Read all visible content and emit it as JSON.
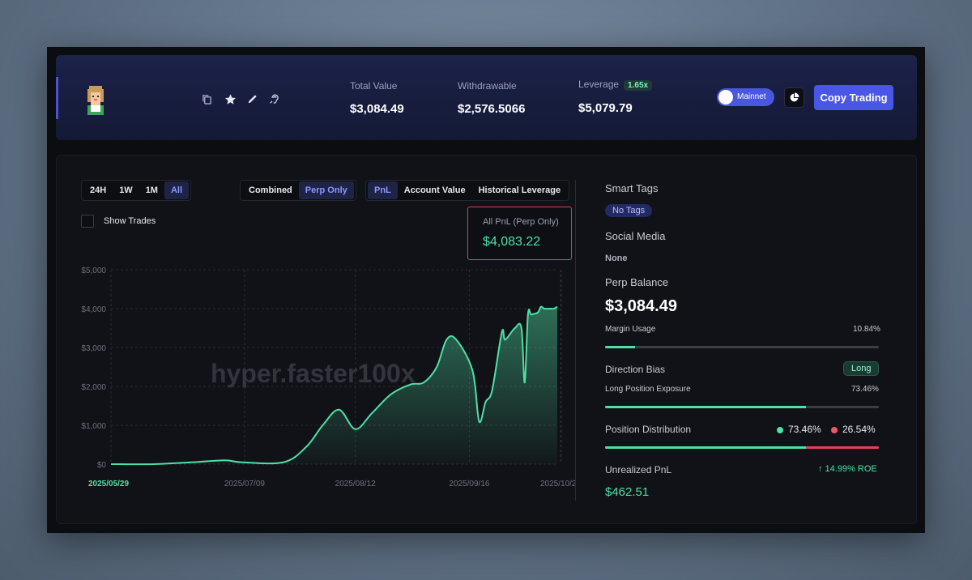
{
  "header": {
    "total_value_label": "Total Value",
    "total_value": "$3,084.49",
    "withdrawable_label": "Withdrawable",
    "withdrawable": "$2,576.5066",
    "leverage_label": "Leverage",
    "leverage_badge": "1.65x",
    "leverage_value": "$5,079.79",
    "network_toggle_label": "Mainnet",
    "copy_trading_label": "Copy Trading",
    "icons": [
      "copy-icon",
      "star-icon",
      "pencil-icon",
      "ear-icon",
      "pie-chart-icon"
    ]
  },
  "controls": {
    "ranges": [
      "24H",
      "1W",
      "1M",
      "All"
    ],
    "range_active": "All",
    "modes": [
      "Combined",
      "Perp Only"
    ],
    "mode_active": "Perp Only",
    "views": [
      "PnL",
      "Account Value",
      "Historical Leverage"
    ],
    "view_active": "PnL",
    "show_trades_label": "Show Trades"
  },
  "pnl_summary": {
    "label": "All PnL (Perp Only)",
    "value": "$4,083.22"
  },
  "chart_data": {
    "type": "area",
    "watermark": "hyper.faster100x",
    "x_tick_labels": [
      "2025/05/29",
      "2025/07/09",
      "2025/08/12",
      "2025/09/16",
      "2025/10/2"
    ],
    "y_tick_labels": [
      "$5,000",
      "$4,000",
      "$3,000",
      "$2,000",
      "$1,000",
      "$0"
    ],
    "ylim": [
      0,
      5000
    ],
    "grid": true,
    "line_color": "#4fe0a6",
    "series": [
      {
        "x": [
          "2025/05/29",
          "2025/06/11",
          "2025/06/23",
          "2025/07/03",
          "2025/07/08",
          "2025/07/21",
          "2025/07/28",
          "2025/08/02",
          "2025/08/07",
          "2025/08/12",
          "2025/08/17",
          "2025/08/23",
          "2025/08/29",
          "2025/09/02",
          "2025/09/06",
          "2025/09/09",
          "2025/09/12",
          "2025/09/17",
          "2025/09/19",
          "2025/09/21",
          "2025/09/23",
          "2025/09/26",
          "2025/09/27",
          "2025/09/30",
          "2025/10/02",
          "2025/10/03",
          "2025/10/04",
          "2025/10/05",
          "2025/10/07",
          "2025/10/08",
          "2025/10/09",
          "2025/10/11",
          "2025/10/12",
          "2025/10/13"
        ],
        "y": [
          0,
          0,
          50,
          100,
          50,
          50,
          450,
          1000,
          1400,
          900,
          1300,
          1800,
          2050,
          2100,
          2500,
          3200,
          3200,
          2400,
          1100,
          1600,
          1900,
          3400,
          3200,
          3500,
          3500,
          2100,
          3850,
          3850,
          3900,
          4050,
          4000,
          4000,
          4000,
          4050
        ]
      }
    ]
  },
  "sidebar": {
    "smart_tags_title": "Smart Tags",
    "smart_tag": "No Tags",
    "social_media_title": "Social Media",
    "social_media_value": "None",
    "perp_balance_title": "Perp Balance",
    "perp_balance_value": "$3,084.49",
    "margin_usage_label": "Margin Usage",
    "margin_usage_value": "10.84%",
    "margin_usage_fraction": 0.1084,
    "direction_bias_title": "Direction Bias",
    "direction_bias_value": "Long",
    "long_exposure_label": "Long Position Exposure",
    "long_exposure_value": "73.46%",
    "long_exposure_fraction": 0.7346,
    "position_distribution_title": "Position Distribution",
    "dist_long": "73.46%",
    "dist_short": "26.54%",
    "dist_long_fraction": 0.7346,
    "unrealized_pnl_title": "Unrealized PnL",
    "roe_text": "↑ 14.99% ROE",
    "unrealized_pnl_value": "$462.51"
  }
}
